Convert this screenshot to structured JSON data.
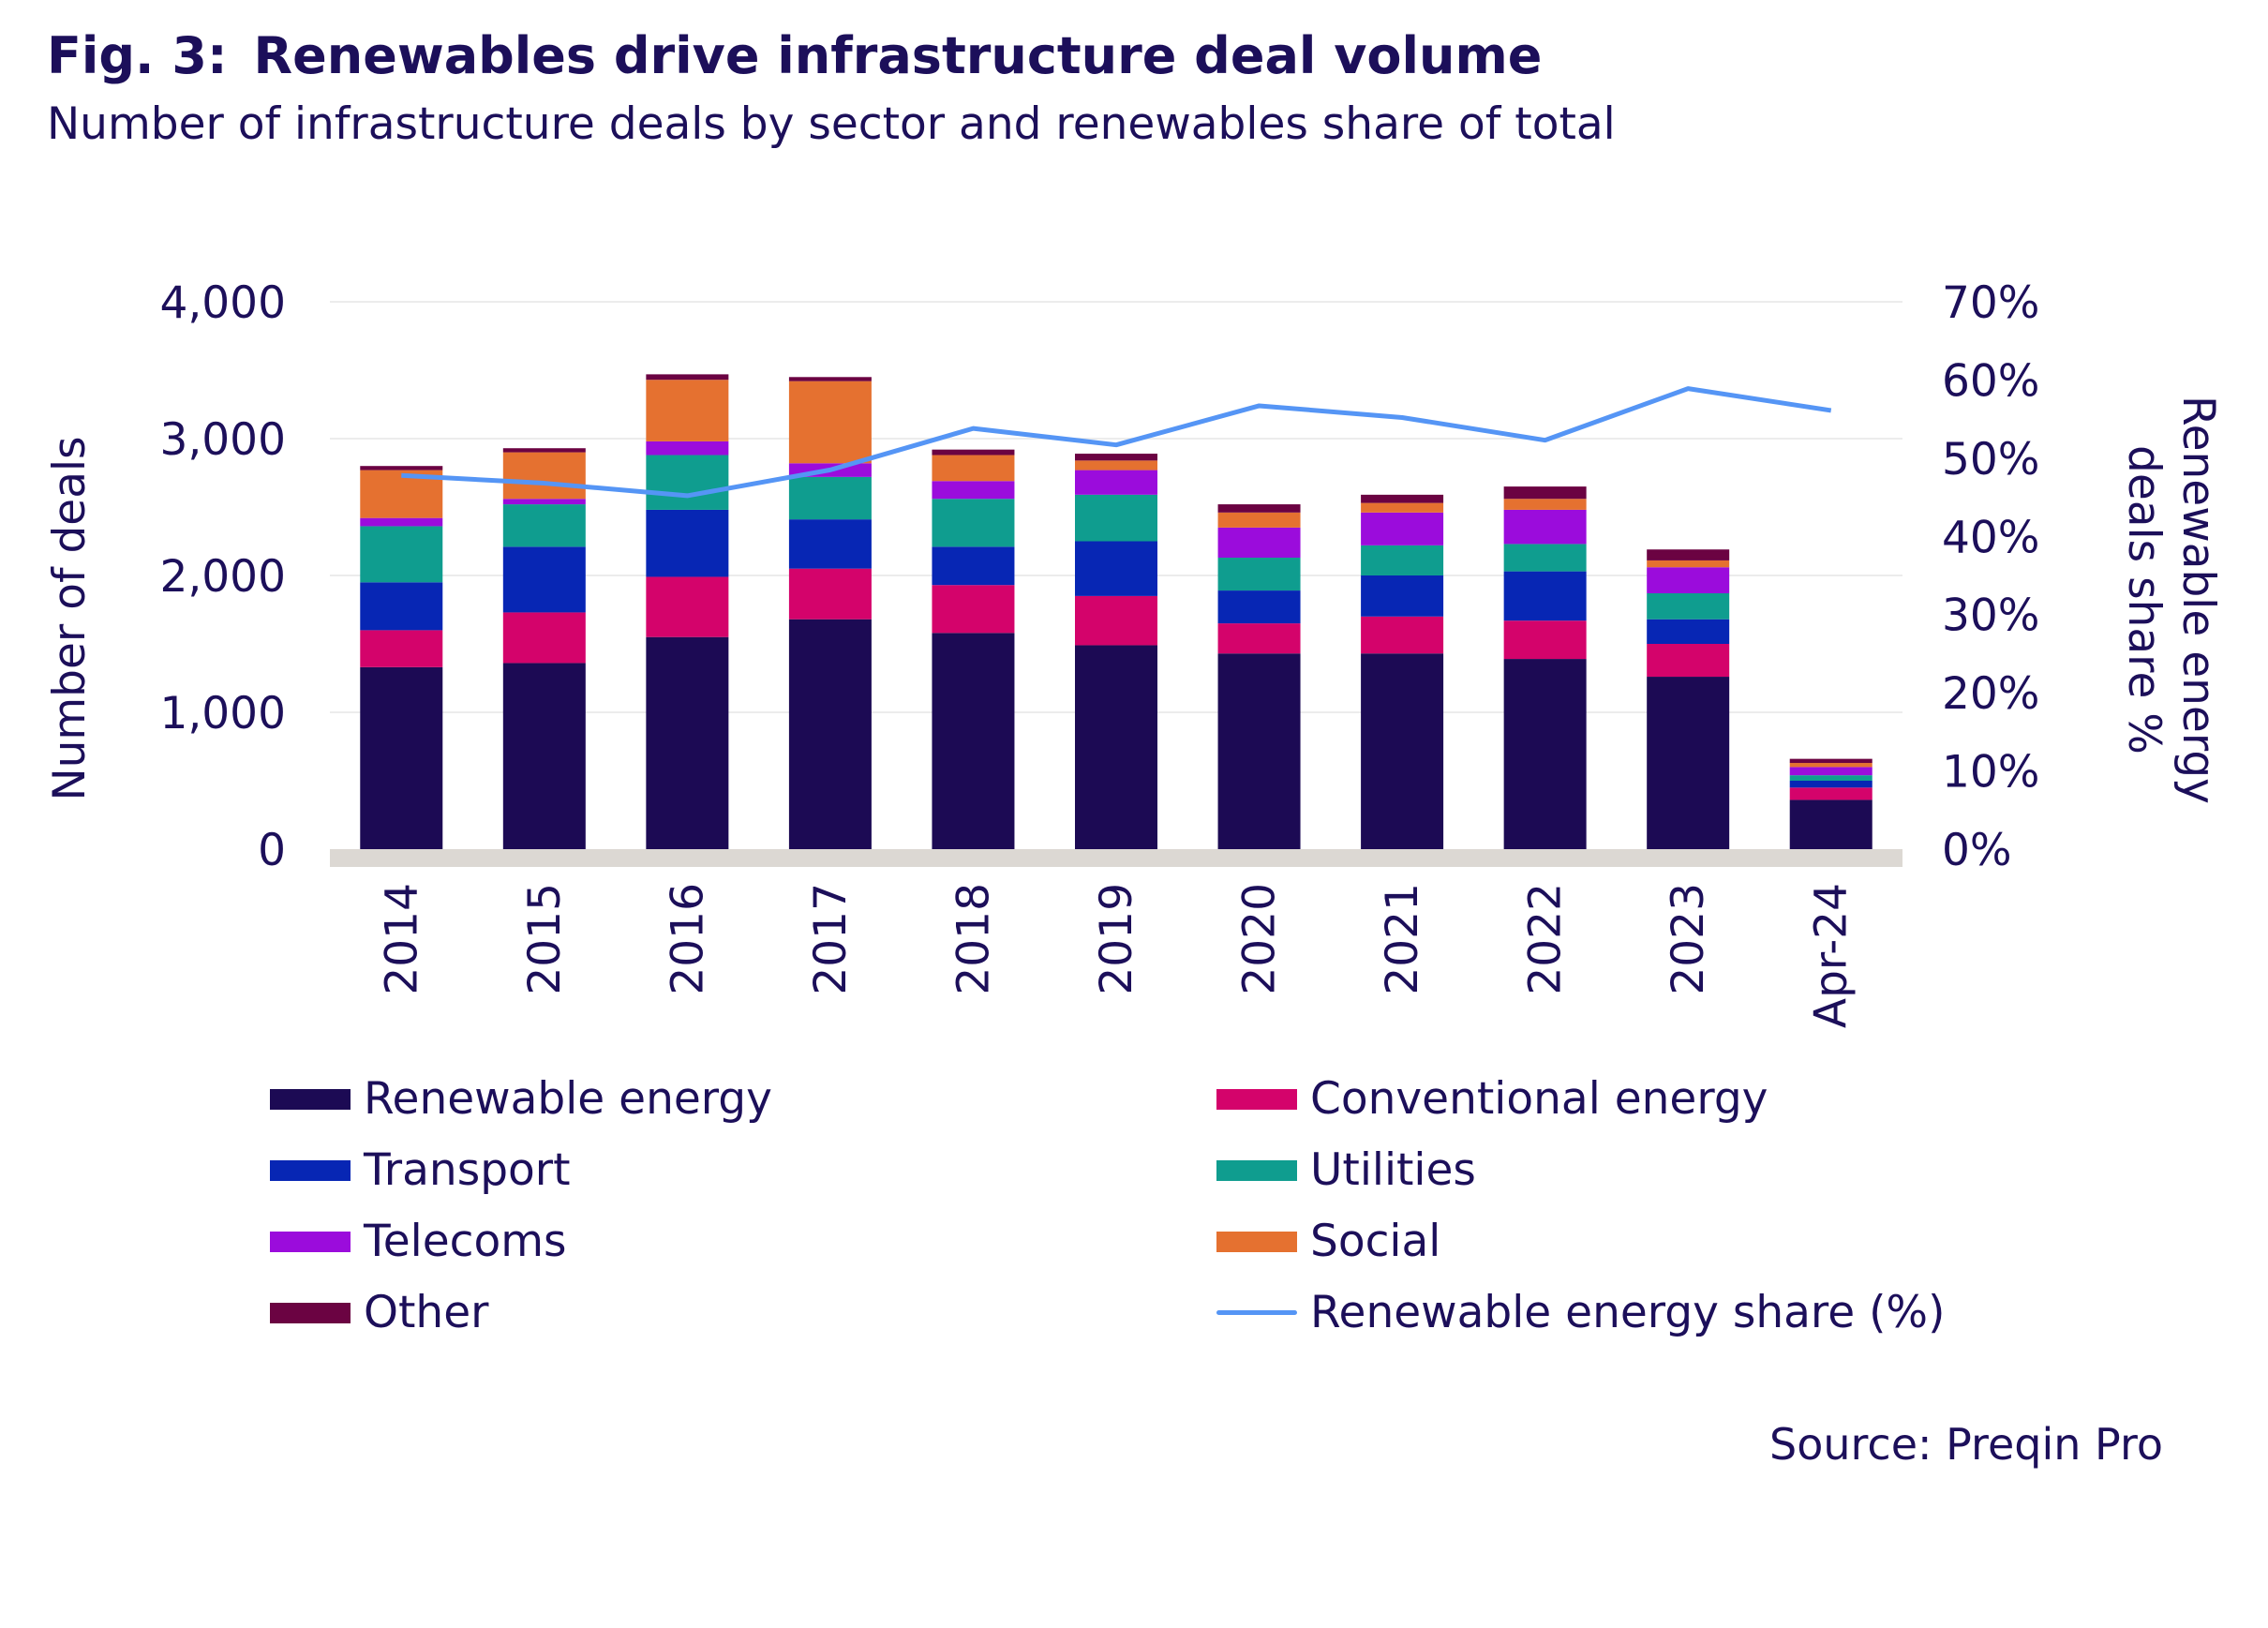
{
  "figure": {
    "label": "Fig. 3:",
    "title": "Renewables drive infrastructure deal volume",
    "subtitle": "Number of infrastructure deals by sector and renewables share of total",
    "source": "Source: Preqin Pro"
  },
  "colors": {
    "renewable": "#1c0a54",
    "conventional": "#d4036b",
    "transport": "#0726b4",
    "utilities": "#0f9d8f",
    "telecoms": "#9b0cdc",
    "social": "#e57130",
    "other": "#6b0342",
    "share_line": "#5595f5",
    "axis_band": "#dcd8d3",
    "gridline": "#ececec"
  },
  "chart_data": {
    "type": "bar",
    "stacked": true,
    "title": "Renewables drive infrastructure deal volume",
    "categories": [
      "2014",
      "2015",
      "2016",
      "2017",
      "2018",
      "2019",
      "2020",
      "2021",
      "2022",
      "2023",
      "Apr-24"
    ],
    "ylabel": "Number of deals",
    "y2label": "Renewable energy deals share %",
    "ylim": [
      0,
      4000
    ],
    "yticks": [
      "0",
      "1,000",
      "2,000",
      "3,000",
      "4,000"
    ],
    "y2lim": [
      0,
      70
    ],
    "y2ticks": [
      "0%",
      "10%",
      "20%",
      "30%",
      "40%",
      "50%",
      "60%",
      "70%"
    ],
    "grid": true,
    "legend_position": "bottom",
    "series": [
      {
        "key": "renewable",
        "name": "Renewable energy",
        "values": [
          1330,
          1360,
          1550,
          1680,
          1580,
          1490,
          1430,
          1430,
          1390,
          1260,
          360
        ]
      },
      {
        "key": "conventional",
        "name": "Conventional energy",
        "values": [
          270,
          370,
          440,
          370,
          350,
          360,
          220,
          270,
          280,
          240,
          90
        ]
      },
      {
        "key": "transport",
        "name": "Transport",
        "values": [
          350,
          480,
          490,
          360,
          280,
          400,
          240,
          300,
          360,
          180,
          50
        ]
      },
      {
        "key": "utilities",
        "name": "Utilities",
        "values": [
          410,
          310,
          400,
          310,
          350,
          340,
          240,
          220,
          200,
          190,
          40
        ]
      },
      {
        "key": "telecoms",
        "name": "Telecoms",
        "values": [
          60,
          40,
          100,
          100,
          130,
          180,
          220,
          240,
          250,
          190,
          60
        ]
      },
      {
        "key": "social",
        "name": "Social",
        "values": [
          350,
          340,
          450,
          600,
          190,
          70,
          110,
          70,
          80,
          50,
          30
        ]
      },
      {
        "key": "other",
        "name": "Other",
        "values": [
          30,
          30,
          40,
          30,
          40,
          50,
          60,
          60,
          90,
          80,
          30
        ]
      }
    ],
    "line_series": {
      "key": "share_line",
      "name": "Renewable energy share (%)",
      "axis": "right",
      "values": [
        47.8,
        46.8,
        45.2,
        48.5,
        53.8,
        51.7,
        56.7,
        55.2,
        52.3,
        58.9,
        56.1
      ]
    }
  }
}
